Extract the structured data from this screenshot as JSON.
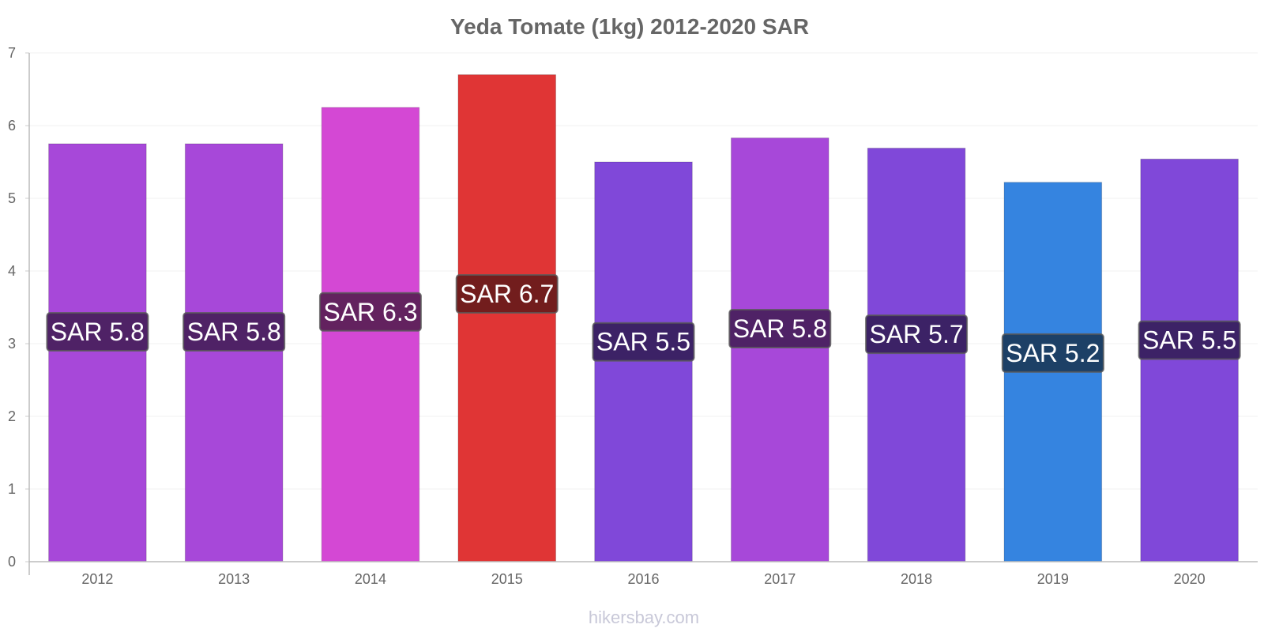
{
  "chart_data": {
    "type": "bar",
    "title": "Yeda Tomate (1kg) 2012-2020 SAR",
    "xlabel": "",
    "ylabel": "",
    "categories": [
      "2012",
      "2013",
      "2014",
      "2015",
      "2016",
      "2017",
      "2018",
      "2019",
      "2020"
    ],
    "values": [
      5.75,
      5.75,
      6.25,
      6.7,
      5.5,
      5.83,
      5.69,
      5.22,
      5.54
    ],
    "data_labels": [
      "SAR 5.8",
      "SAR 5.8",
      "SAR 6.3",
      "SAR 6.7",
      "SAR 5.5",
      "SAR 5.8",
      "SAR 5.7",
      "SAR 5.2",
      "SAR 5.5"
    ],
    "bar_colors": [
      "#a748d9",
      "#a748d9",
      "#d448d4",
      "#e03535",
      "#8048d9",
      "#a748d9",
      "#8048d9",
      "#3584e0",
      "#8048d9"
    ],
    "label_bg_colors": [
      "#4f2266",
      "#4f2266",
      "#63225f",
      "#721d1d",
      "#3c2266",
      "#4f2266",
      "#3c2266",
      "#1d4066",
      "#3c2266"
    ],
    "ylim": [
      0,
      7
    ],
    "yticks": [
      "0",
      "1",
      "2",
      "3",
      "4",
      "5",
      "6",
      "7"
    ],
    "grid": true,
    "legend": "none"
  },
  "watermark": "hikersbay.com"
}
